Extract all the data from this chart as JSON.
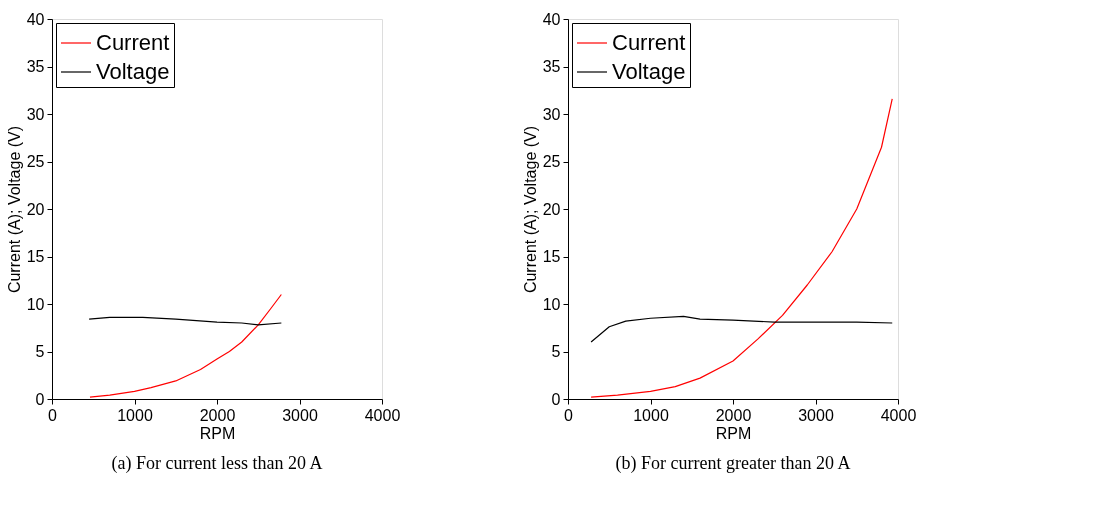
{
  "chart_data": [
    {
      "type": "line",
      "xlabel": "RPM",
      "ylabel": "Current (A); Voltage (V)",
      "xlim": [
        0,
        4000
      ],
      "ylim": [
        0,
        40
      ],
      "xticks": [
        0,
        1000,
        2000,
        3000,
        4000
      ],
      "yticks": [
        0,
        5,
        10,
        15,
        20,
        25,
        30,
        35,
        40
      ],
      "legend": "top left",
      "grid": false,
      "annotations": [
        "(a) For current less than 20 A"
      ],
      "series": [
        {
          "name": "Current",
          "color": "#ff0000",
          "x": [
            460,
            700,
            1000,
            1200,
            1500,
            1800,
            2000,
            2150,
            2300,
            2500,
            2650,
            2780
          ],
          "values": [
            0.2,
            0.4,
            0.8,
            1.2,
            1.9,
            3.1,
            4.2,
            5.0,
            6.0,
            7.8,
            9.5,
            11
          ]
        },
        {
          "name": "Voltage",
          "color": "#000000",
          "x": [
            450,
            700,
            1100,
            1500,
            2000,
            2300,
            2500,
            2780
          ],
          "values": [
            8.4,
            8.6,
            8.6,
            8.4,
            8.1,
            8.0,
            7.8,
            8.0
          ]
        }
      ]
    },
    {
      "type": "line",
      "xlabel": "RPM",
      "ylabel": "Current (A); Voltage (V)",
      "xlim": [
        0,
        4000
      ],
      "ylim": [
        0,
        40
      ],
      "xticks": [
        0,
        1000,
        2000,
        3000,
        4000
      ],
      "yticks": [
        0,
        5,
        10,
        15,
        20,
        25,
        30,
        35,
        40
      ],
      "legend": "top left",
      "grid": false,
      "annotations": [
        "(b) For current greater than 20 A"
      ],
      "series": [
        {
          "name": "Current",
          "color": "#ff0000",
          "x": [
            280,
            600,
            1000,
            1300,
            1600,
            2000,
            2300,
            2600,
            2900,
            3200,
            3500,
            3800,
            3930
          ],
          "values": [
            0.2,
            0.4,
            0.8,
            1.3,
            2.2,
            4.0,
            6.3,
            8.8,
            12,
            15.5,
            20,
            26.5,
            31.6
          ]
        },
        {
          "name": "Voltage",
          "color": "#000000",
          "x": [
            280,
            500,
            700,
            1000,
            1400,
            1600,
            2000,
            2500,
            3000,
            3500,
            3930
          ],
          "values": [
            6.0,
            7.6,
            8.2,
            8.5,
            8.7,
            8.4,
            8.3,
            8.1,
            8.1,
            8.1,
            8.0
          ]
        }
      ]
    }
  ]
}
